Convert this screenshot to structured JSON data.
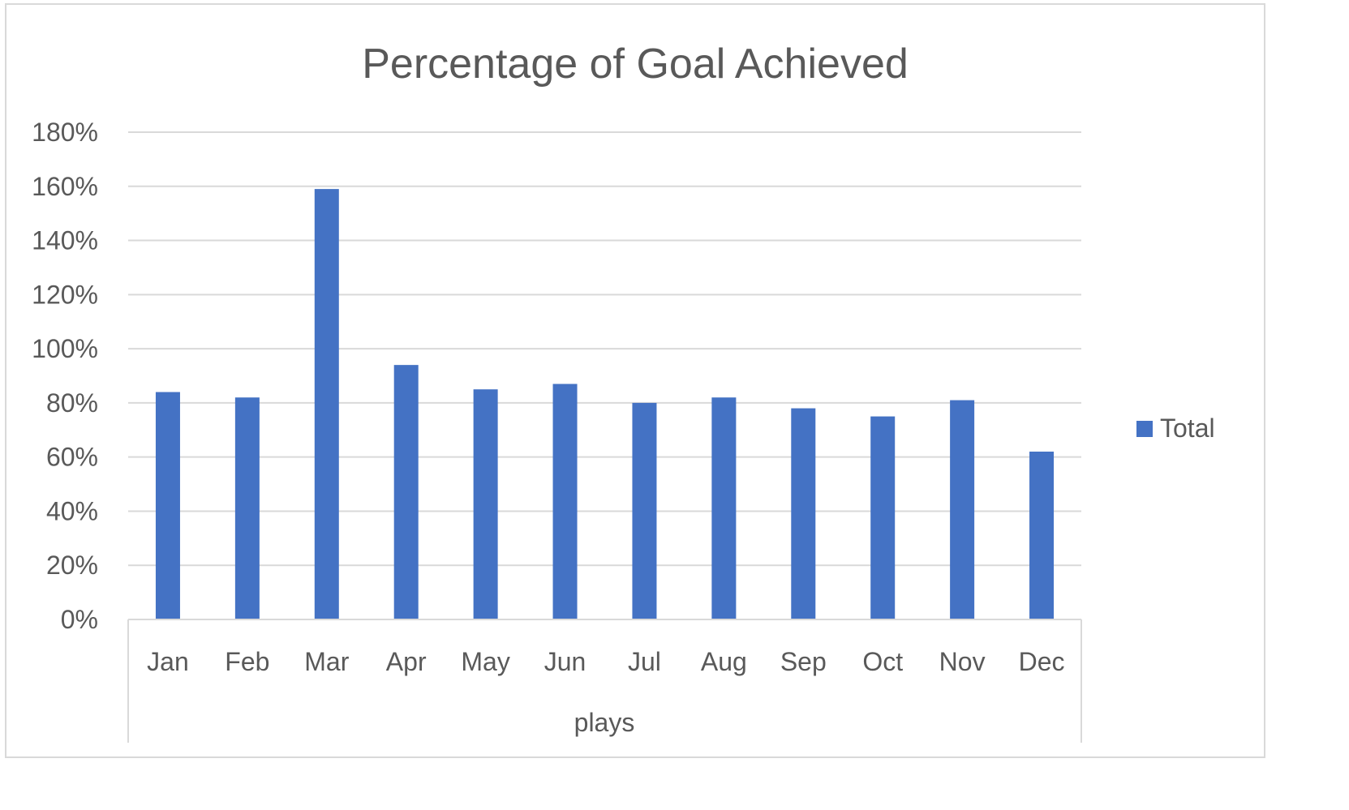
{
  "chart_data": {
    "type": "bar",
    "title": "Percentage of Goal Achieved",
    "xlabel": "plays",
    "ylabel": "",
    "categories": [
      "Jan",
      "Feb",
      "Mar",
      "Apr",
      "May",
      "Jun",
      "Jul",
      "Aug",
      "Sep",
      "Oct",
      "Nov",
      "Dec"
    ],
    "series": [
      {
        "name": "Total",
        "values": [
          84,
          82,
          159,
          94,
          85,
          87,
          80,
          82,
          78,
          75,
          81,
          62
        ],
        "color": "#4472c4"
      }
    ],
    "ylim": [
      0,
      180
    ],
    "y_ticks": [
      "0%",
      "20%",
      "40%",
      "60%",
      "80%",
      "100%",
      "120%",
      "140%",
      "160%",
      "180%"
    ],
    "y_tick_values": [
      0,
      20,
      40,
      60,
      80,
      100,
      120,
      140,
      160,
      180
    ],
    "grid": true,
    "legend_position": "right",
    "colors": {
      "bar": "#4472c4",
      "grid": "#d9d9d9",
      "text": "#595959",
      "border": "#d9d9d9"
    }
  }
}
